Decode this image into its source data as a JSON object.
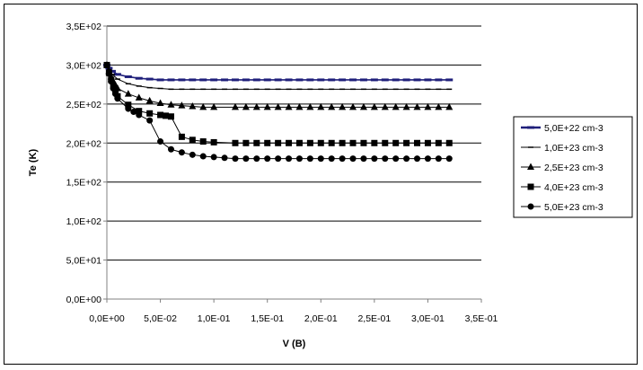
{
  "chart_data": {
    "type": "line",
    "xlabel": "V (B)",
    "ylabel": "Te (K)",
    "xlim": [
      0,
      0.35
    ],
    "ylim": [
      0,
      350
    ],
    "x_ticks": [
      0,
      0.05,
      0.1,
      0.15,
      0.2,
      0.25,
      0.3,
      0.35
    ],
    "x_tick_labels": [
      "0,0E+00",
      "5,0E-02",
      "1,0E-01",
      "1,5E-01",
      "2,0E-01",
      "2,5E-01",
      "3,0E-01",
      "3,5E-01"
    ],
    "y_ticks": [
      0,
      50,
      100,
      150,
      200,
      250,
      300,
      350
    ],
    "y_tick_labels": [
      "0,0E+00",
      "5,0E+01",
      "1,0E+02",
      "1,5E+02",
      "2,0E+02",
      "2,5E+02",
      "3,0E+02",
      "3,5E+02"
    ],
    "grid": "horizontal",
    "legend_position": "right",
    "series": [
      {
        "name": "5,0E+22 cm-3",
        "marker": "dash",
        "color": "#1f1f7a",
        "x": [
          0,
          0.002,
          0.005,
          0.01,
          0.02,
          0.03,
          0.04,
          0.05,
          0.06,
          0.07,
          0.08,
          0.09,
          0.1,
          0.11,
          0.12,
          0.13,
          0.14,
          0.15,
          0.16,
          0.17,
          0.18,
          0.19,
          0.2,
          0.21,
          0.22,
          0.23,
          0.24,
          0.25,
          0.26,
          0.27,
          0.28,
          0.29,
          0.3,
          0.31,
          0.32
        ],
        "y": [
          300,
          296,
          292,
          288,
          285,
          283,
          282,
          281,
          281,
          281,
          281,
          281,
          281,
          281,
          281,
          281,
          281,
          281,
          281,
          281,
          281,
          281,
          281,
          281,
          281,
          281,
          281,
          281,
          281,
          281,
          281,
          281,
          281,
          281,
          281
        ]
      },
      {
        "name": "1,0E+23 cm-3",
        "marker": "small-dash",
        "color": "#000000",
        "x": [
          0,
          0.002,
          0.005,
          0.01,
          0.02,
          0.03,
          0.04,
          0.05,
          0.06,
          0.07,
          0.08,
          0.09,
          0.1,
          0.11,
          0.12,
          0.13,
          0.14,
          0.15,
          0.16,
          0.17,
          0.18,
          0.19,
          0.2,
          0.21,
          0.22,
          0.23,
          0.24,
          0.25,
          0.26,
          0.27,
          0.28,
          0.29,
          0.3,
          0.31,
          0.32
        ],
        "y": [
          300,
          294,
          288,
          282,
          276,
          273,
          271,
          270,
          269,
          269,
          269,
          269,
          269,
          269,
          269,
          269,
          269,
          269,
          269,
          269,
          269,
          269,
          269,
          269,
          269,
          269,
          269,
          269,
          269,
          269,
          269,
          269,
          269,
          269,
          269
        ]
      },
      {
        "name": "2,5E+23 cm-3",
        "marker": "triangle",
        "color": "#000000",
        "x": [
          0,
          0.002,
          0.004,
          0.006,
          0.008,
          0.01,
          0.02,
          0.03,
          0.04,
          0.05,
          0.06,
          0.07,
          0.08,
          0.09,
          0.1,
          0.12,
          0.13,
          0.14,
          0.15,
          0.16,
          0.17,
          0.18,
          0.19,
          0.2,
          0.21,
          0.22,
          0.23,
          0.24,
          0.25,
          0.26,
          0.27,
          0.28,
          0.29,
          0.3,
          0.31,
          0.32
        ],
        "y": [
          300,
          292,
          285,
          279,
          274,
          270,
          263,
          258,
          254,
          251,
          249,
          248,
          247,
          246,
          246,
          246,
          246,
          246,
          246,
          246,
          246,
          246,
          246,
          246,
          246,
          246,
          246,
          246,
          246,
          246,
          246,
          246,
          246,
          246,
          246,
          246
        ]
      },
      {
        "name": "4,0E+23 cm-3",
        "marker": "square",
        "color": "#000000",
        "x": [
          0,
          0.002,
          0.004,
          0.006,
          0.008,
          0.01,
          0.02,
          0.03,
          0.04,
          0.05,
          0.055,
          0.06,
          0.07,
          0.08,
          0.09,
          0.1,
          0.12,
          0.13,
          0.14,
          0.15,
          0.16,
          0.17,
          0.18,
          0.19,
          0.2,
          0.21,
          0.22,
          0.23,
          0.24,
          0.25,
          0.26,
          0.27,
          0.28,
          0.29,
          0.3,
          0.31,
          0.32
        ],
        "y": [
          300,
          290,
          281,
          273,
          266,
          260,
          249,
          241,
          238,
          236,
          235,
          234,
          208,
          204,
          202,
          201,
          200,
          200,
          200,
          200,
          200,
          200,
          200,
          200,
          200,
          200,
          200,
          200,
          200,
          200,
          200,
          200,
          200,
          200,
          200,
          200,
          200
        ]
      },
      {
        "name": "5,0E+23 cm-3",
        "marker": "circle",
        "color": "#000000",
        "x": [
          0,
          0.002,
          0.004,
          0.006,
          0.008,
          0.01,
          0.02,
          0.025,
          0.03,
          0.04,
          0.05,
          0.06,
          0.07,
          0.08,
          0.09,
          0.1,
          0.11,
          0.12,
          0.13,
          0.14,
          0.15,
          0.16,
          0.17,
          0.18,
          0.19,
          0.2,
          0.21,
          0.22,
          0.23,
          0.24,
          0.25,
          0.26,
          0.27,
          0.28,
          0.29,
          0.3,
          0.31,
          0.32
        ],
        "y": [
          300,
          289,
          279,
          270,
          263,
          257,
          244,
          240,
          236,
          229,
          202,
          192,
          188,
          185,
          183,
          182,
          181,
          180,
          180,
          180,
          180,
          180,
          180,
          180,
          180,
          180,
          180,
          180,
          180,
          180,
          180,
          180,
          180,
          180,
          180,
          180,
          180,
          180
        ]
      }
    ]
  }
}
